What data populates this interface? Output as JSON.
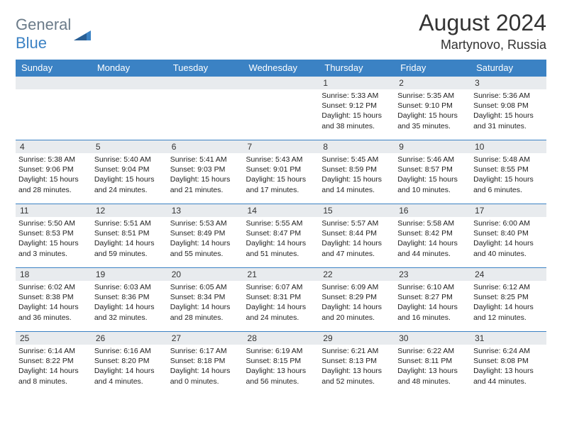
{
  "header": {
    "logo_general": "General",
    "logo_blue": "Blue",
    "month_title": "August 2024",
    "location": "Martynovo, Russia"
  },
  "colors": {
    "accent": "#3b82c4",
    "daynum_bg": "#e8ebee",
    "text": "#222222",
    "logo_gray": "#6b7b89"
  },
  "day_headers": [
    "Sunday",
    "Monday",
    "Tuesday",
    "Wednesday",
    "Thursday",
    "Friday",
    "Saturday"
  ],
  "weeks": [
    [
      {
        "blank": true
      },
      {
        "blank": true
      },
      {
        "blank": true
      },
      {
        "blank": true
      },
      {
        "n": "1",
        "sunrise": "Sunrise: 5:33 AM",
        "sunset": "Sunset: 9:12 PM",
        "daylight": "Daylight: 15 hours and 38 minutes."
      },
      {
        "n": "2",
        "sunrise": "Sunrise: 5:35 AM",
        "sunset": "Sunset: 9:10 PM",
        "daylight": "Daylight: 15 hours and 35 minutes."
      },
      {
        "n": "3",
        "sunrise": "Sunrise: 5:36 AM",
        "sunset": "Sunset: 9:08 PM",
        "daylight": "Daylight: 15 hours and 31 minutes."
      }
    ],
    [
      {
        "n": "4",
        "sunrise": "Sunrise: 5:38 AM",
        "sunset": "Sunset: 9:06 PM",
        "daylight": "Daylight: 15 hours and 28 minutes."
      },
      {
        "n": "5",
        "sunrise": "Sunrise: 5:40 AM",
        "sunset": "Sunset: 9:04 PM",
        "daylight": "Daylight: 15 hours and 24 minutes."
      },
      {
        "n": "6",
        "sunrise": "Sunrise: 5:41 AM",
        "sunset": "Sunset: 9:03 PM",
        "daylight": "Daylight: 15 hours and 21 minutes."
      },
      {
        "n": "7",
        "sunrise": "Sunrise: 5:43 AM",
        "sunset": "Sunset: 9:01 PM",
        "daylight": "Daylight: 15 hours and 17 minutes."
      },
      {
        "n": "8",
        "sunrise": "Sunrise: 5:45 AM",
        "sunset": "Sunset: 8:59 PM",
        "daylight": "Daylight: 15 hours and 14 minutes."
      },
      {
        "n": "9",
        "sunrise": "Sunrise: 5:46 AM",
        "sunset": "Sunset: 8:57 PM",
        "daylight": "Daylight: 15 hours and 10 minutes."
      },
      {
        "n": "10",
        "sunrise": "Sunrise: 5:48 AM",
        "sunset": "Sunset: 8:55 PM",
        "daylight": "Daylight: 15 hours and 6 minutes."
      }
    ],
    [
      {
        "n": "11",
        "sunrise": "Sunrise: 5:50 AM",
        "sunset": "Sunset: 8:53 PM",
        "daylight": "Daylight: 15 hours and 3 minutes."
      },
      {
        "n": "12",
        "sunrise": "Sunrise: 5:51 AM",
        "sunset": "Sunset: 8:51 PM",
        "daylight": "Daylight: 14 hours and 59 minutes."
      },
      {
        "n": "13",
        "sunrise": "Sunrise: 5:53 AM",
        "sunset": "Sunset: 8:49 PM",
        "daylight": "Daylight: 14 hours and 55 minutes."
      },
      {
        "n": "14",
        "sunrise": "Sunrise: 5:55 AM",
        "sunset": "Sunset: 8:47 PM",
        "daylight": "Daylight: 14 hours and 51 minutes."
      },
      {
        "n": "15",
        "sunrise": "Sunrise: 5:57 AM",
        "sunset": "Sunset: 8:44 PM",
        "daylight": "Daylight: 14 hours and 47 minutes."
      },
      {
        "n": "16",
        "sunrise": "Sunrise: 5:58 AM",
        "sunset": "Sunset: 8:42 PM",
        "daylight": "Daylight: 14 hours and 44 minutes."
      },
      {
        "n": "17",
        "sunrise": "Sunrise: 6:00 AM",
        "sunset": "Sunset: 8:40 PM",
        "daylight": "Daylight: 14 hours and 40 minutes."
      }
    ],
    [
      {
        "n": "18",
        "sunrise": "Sunrise: 6:02 AM",
        "sunset": "Sunset: 8:38 PM",
        "daylight": "Daylight: 14 hours and 36 minutes."
      },
      {
        "n": "19",
        "sunrise": "Sunrise: 6:03 AM",
        "sunset": "Sunset: 8:36 PM",
        "daylight": "Daylight: 14 hours and 32 minutes."
      },
      {
        "n": "20",
        "sunrise": "Sunrise: 6:05 AM",
        "sunset": "Sunset: 8:34 PM",
        "daylight": "Daylight: 14 hours and 28 minutes."
      },
      {
        "n": "21",
        "sunrise": "Sunrise: 6:07 AM",
        "sunset": "Sunset: 8:31 PM",
        "daylight": "Daylight: 14 hours and 24 minutes."
      },
      {
        "n": "22",
        "sunrise": "Sunrise: 6:09 AM",
        "sunset": "Sunset: 8:29 PM",
        "daylight": "Daylight: 14 hours and 20 minutes."
      },
      {
        "n": "23",
        "sunrise": "Sunrise: 6:10 AM",
        "sunset": "Sunset: 8:27 PM",
        "daylight": "Daylight: 14 hours and 16 minutes."
      },
      {
        "n": "24",
        "sunrise": "Sunrise: 6:12 AM",
        "sunset": "Sunset: 8:25 PM",
        "daylight": "Daylight: 14 hours and 12 minutes."
      }
    ],
    [
      {
        "n": "25",
        "sunrise": "Sunrise: 6:14 AM",
        "sunset": "Sunset: 8:22 PM",
        "daylight": "Daylight: 14 hours and 8 minutes."
      },
      {
        "n": "26",
        "sunrise": "Sunrise: 6:16 AM",
        "sunset": "Sunset: 8:20 PM",
        "daylight": "Daylight: 14 hours and 4 minutes."
      },
      {
        "n": "27",
        "sunrise": "Sunrise: 6:17 AM",
        "sunset": "Sunset: 8:18 PM",
        "daylight": "Daylight: 14 hours and 0 minutes."
      },
      {
        "n": "28",
        "sunrise": "Sunrise: 6:19 AM",
        "sunset": "Sunset: 8:15 PM",
        "daylight": "Daylight: 13 hours and 56 minutes."
      },
      {
        "n": "29",
        "sunrise": "Sunrise: 6:21 AM",
        "sunset": "Sunset: 8:13 PM",
        "daylight": "Daylight: 13 hours and 52 minutes."
      },
      {
        "n": "30",
        "sunrise": "Sunrise: 6:22 AM",
        "sunset": "Sunset: 8:11 PM",
        "daylight": "Daylight: 13 hours and 48 minutes."
      },
      {
        "n": "31",
        "sunrise": "Sunrise: 6:24 AM",
        "sunset": "Sunset: 8:08 PM",
        "daylight": "Daylight: 13 hours and 44 minutes."
      }
    ]
  ]
}
